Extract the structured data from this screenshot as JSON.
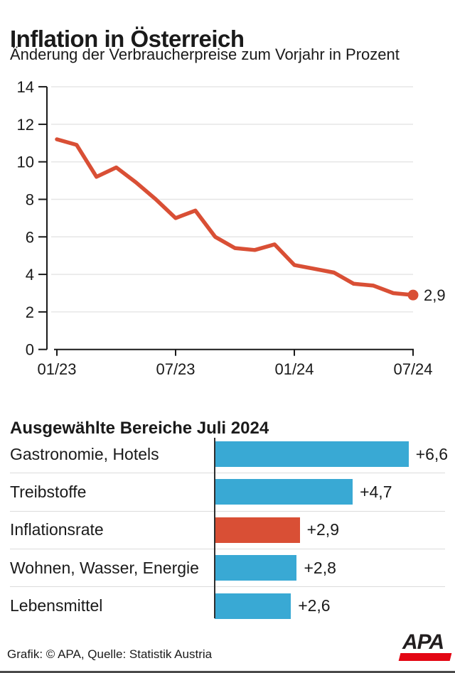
{
  "header": {
    "title": "Inflation in Österreich",
    "subtitle": "Änderung der Verbraucherpreise zum Vorjahr in Prozent"
  },
  "chart_data": [
    {
      "type": "line",
      "title": "Inflation in Österreich",
      "subtitle": "Änderung der Verbraucherpreise zum Vorjahr in Prozent",
      "x": [
        "01/23",
        "02/23",
        "03/23",
        "04/23",
        "05/23",
        "06/23",
        "07/23",
        "08/23",
        "09/23",
        "10/23",
        "11/23",
        "12/23",
        "01/24",
        "02/24",
        "03/24",
        "04/24",
        "05/24",
        "06/24",
        "07/24"
      ],
      "values": [
        11.2,
        10.9,
        9.2,
        9.7,
        8.9,
        8.0,
        7.0,
        7.4,
        6.0,
        5.4,
        5.3,
        5.6,
        4.5,
        4.3,
        4.1,
        3.5,
        3.4,
        3.0,
        2.9
      ],
      "xtick_labels": [
        "01/23",
        "07/23",
        "01/24",
        "07/24"
      ],
      "xtick_month_index": [
        0,
        6,
        12,
        18
      ],
      "yticks": [
        0,
        2,
        4,
        6,
        8,
        10,
        12,
        14
      ],
      "ylim": [
        0,
        14
      ],
      "grid": true,
      "end_label": "2,9",
      "ylabel": "",
      "xlabel": ""
    },
    {
      "type": "bar",
      "orientation": "horizontal",
      "title": "Ausgewählte Bereiche Juli 2024",
      "categories": [
        "Gastronomie, Hotels",
        "Treibstoffe",
        "Inflationsrate",
        "Wohnen, Wasser, Energie",
        "Lebensmittel"
      ],
      "values": [
        6.6,
        4.7,
        2.9,
        2.8,
        2.6
      ],
      "value_labels": [
        "+6,6",
        "+4,7",
        "+2,9",
        "+2,8",
        "+2,6"
      ],
      "highlight_index": 2,
      "xlim": [
        0,
        6.8
      ]
    }
  ],
  "footer": {
    "credit": "Grafik: © APA, Quelle: Statistik Austria",
    "logo_text": "APA"
  },
  "colors": {
    "line_red": "#d94f35",
    "bar_blue": "#39a9d4",
    "bar_red": "#d94f35",
    "logo_red": "#e30613",
    "grid_gray": "#e6e6e6",
    "axis_dark": "#1a1a1a",
    "separator_gray": "#dcdcdc",
    "text_dark": "#1a1a1a"
  }
}
